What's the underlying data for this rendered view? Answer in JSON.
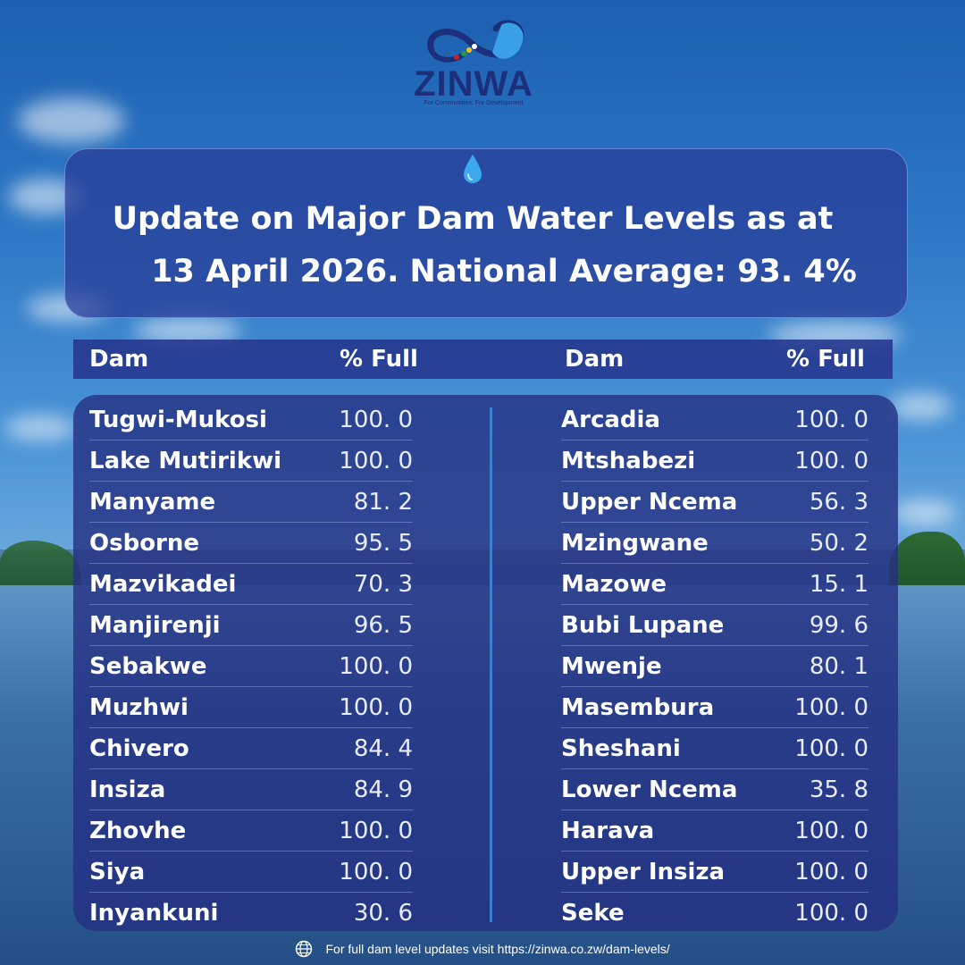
{
  "logo": {
    "name": "ZINWA",
    "tagline": "For Communities, For Development"
  },
  "title": {
    "line1": "Update on Major Dam Water Levels as at",
    "line2": "13 April 2026. National Average: 93. 4%"
  },
  "table": {
    "headers": {
      "left_dam": "Dam",
      "left_pct": "% Full",
      "right_dam": "Dam",
      "right_pct": "% Full"
    },
    "left": [
      {
        "dam": "Tugwi-Mukosi",
        "pct": "100. 0"
      },
      {
        "dam": "Lake Mutirikwi",
        "pct": "100. 0"
      },
      {
        "dam": "Manyame",
        "pct": "81. 2"
      },
      {
        "dam": "Osborne",
        "pct": "95. 5"
      },
      {
        "dam": "Mazvikadei",
        "pct": "70. 3"
      },
      {
        "dam": "Manjirenji",
        "pct": "96. 5"
      },
      {
        "dam": "Sebakwe",
        "pct": "100. 0"
      },
      {
        "dam": "Muzhwi",
        "pct": "100. 0"
      },
      {
        "dam": "Chivero",
        "pct": "84. 4"
      },
      {
        "dam": "Insiza",
        "pct": "84. 9"
      },
      {
        "dam": "Zhovhe",
        "pct": "100. 0"
      },
      {
        "dam": "Siya",
        "pct": "100. 0"
      },
      {
        "dam": "Inyankuni",
        "pct": "30. 6"
      }
    ],
    "right": [
      {
        "dam": "Arcadia",
        "pct": "100. 0"
      },
      {
        "dam": "Mtshabezi",
        "pct": "100. 0"
      },
      {
        "dam": "Upper Ncema",
        "pct": "56. 3"
      },
      {
        "dam": "Mzingwane",
        "pct": "50. 2"
      },
      {
        "dam": "Mazowe",
        "pct": "15. 1"
      },
      {
        "dam": "Bubi Lupane",
        "pct": "99. 6"
      },
      {
        "dam": "Mwenje",
        "pct": "80. 1"
      },
      {
        "dam": "Masembura",
        "pct": "100. 0"
      },
      {
        "dam": "Sheshani",
        "pct": "100. 0"
      },
      {
        "dam": "Lower Ncema",
        "pct": "35. 8"
      },
      {
        "dam": "Harava",
        "pct": "100. 0"
      },
      {
        "dam": "Upper Insiza",
        "pct": "100. 0"
      },
      {
        "dam": "Seke",
        "pct": "100. 0"
      }
    ]
  },
  "footer": {
    "text": "For full dam level updates visit https://zinwa.co.zw/dam-levels/",
    "icon": "globe-icon"
  },
  "colors": {
    "logo_navy": "#1c2f7a",
    "card": "#283a96",
    "divider": "#3a82cc"
  }
}
